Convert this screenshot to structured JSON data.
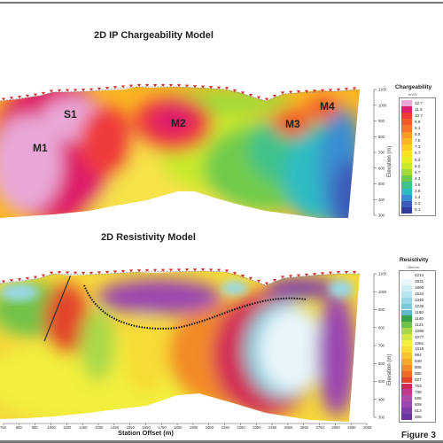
{
  "figure_label": "Figure 3",
  "chart_data": [
    {
      "type": "heatmap",
      "title": "2D IP Chargeability Model",
      "ylabel": "Elevation (m)",
      "yticks": [
        1100,
        1000,
        900,
        800,
        700,
        600,
        500,
        400,
        300
      ],
      "ylim": [
        300,
        1100
      ],
      "colorbar": {
        "title": "Chargeability",
        "unit": "mV/V",
        "values": [
          "12.7",
          "11.6",
          "10.7",
          "9.9",
          "9.1",
          "8.5",
          "7.8",
          "7.3",
          "6.7",
          "6.2",
          "5.2",
          "4.7",
          "4.3",
          "3.8",
          "2.8",
          "1.4",
          "0.2",
          "0.1"
        ],
        "colors": [
          "#e8a7d6",
          "#de1f6b",
          "#ef3a3a",
          "#f25a2a",
          "#f6752a",
          "#f89a25",
          "#fab523",
          "#fbcf22",
          "#f8e323",
          "#e7ee24",
          "#c8ea2a",
          "#9fdc3a",
          "#6fcb4b",
          "#3fc28a",
          "#2dbcc4",
          "#3a8dd0",
          "#3b5cb8",
          "#2f3c9a"
        ]
      },
      "annotations": [
        "M1",
        "S1",
        "M2",
        "M3",
        "M4"
      ]
    },
    {
      "type": "heatmap",
      "title": "2D Resistivity Model",
      "xlabel": "Station Offset (m)",
      "ylabel": "Elevation (m)",
      "xticks": [
        750,
        850,
        950,
        1050,
        1150,
        1250,
        1350,
        1450,
        1550,
        1650,
        1750,
        1850,
        1950,
        2050,
        2150,
        2250,
        2350,
        2450,
        2550,
        2650,
        2750,
        2850,
        2950,
        3050
      ],
      "yticks": [
        1100,
        1000,
        900,
        800,
        700,
        600,
        500,
        400,
        300
      ],
      "ylim": [
        300,
        1100
      ],
      "colorbar": {
        "title": "Resistivity",
        "unit": "Ohm·m",
        "values": [
          "4214",
          "2831",
          "1890",
          "1534",
          "1340",
          "1236",
          "1180",
          "1140",
          "1121",
          "1096",
          "1077",
          "1051",
          "1018",
          "984",
          "949",
          "905",
          "886",
          "827",
          "763",
          "739",
          "685",
          "608",
          "513",
          "395"
        ],
        "colors": [
          "#ffffff",
          "#e8f6fb",
          "#cfeef6",
          "#b5e4ef",
          "#98d8e6",
          "#7cc9d9",
          "#5fb8c9",
          "#39a24a",
          "#72c24a",
          "#a9d84a",
          "#d4e845",
          "#f2ef3e",
          "#f7dc35",
          "#f6c42f",
          "#f5a82a",
          "#f28a28",
          "#ee6a28",
          "#e34429",
          "#d22a57",
          "#c23a8e",
          "#b04aa8",
          "#9a47b0",
          "#7e3da8",
          "#6a35a0"
        ]
      }
    }
  ]
}
